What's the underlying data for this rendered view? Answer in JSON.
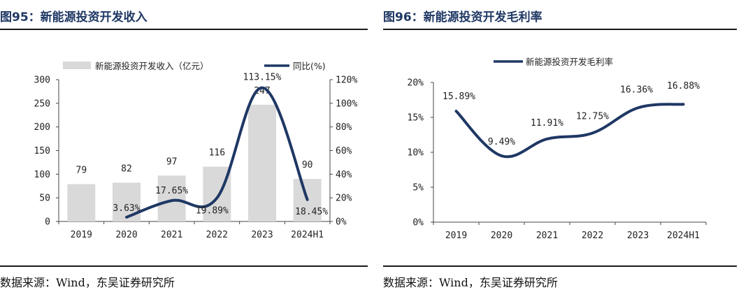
{
  "left_panel": {
    "title": "图95：新能源投资开发收入",
    "source": "数据来源：Wind，东吴证券研究所"
  },
  "right_panel": {
    "title": "图96：新能源投资开发毛利率",
    "source": "数据来源：Wind，东吴证券研究所"
  },
  "colors": {
    "bar": "#d9d9d9",
    "line": "#1f3864",
    "title": "#1f3864"
  },
  "chart_data": [
    {
      "type": "bar",
      "categories": [
        "2019",
        "2020",
        "2021",
        "2022",
        "2023",
        "2024H1"
      ],
      "series": [
        {
          "name": "新能源投资开发收入（亿元）",
          "type": "bar",
          "axis": "left",
          "values": [
            79,
            82,
            97,
            116,
            247,
            90
          ],
          "labels": [
            "79",
            "82",
            "97",
            "116",
            "247",
            "90"
          ]
        },
        {
          "name": "同比(%)",
          "type": "line",
          "axis": "right",
          "values": [
            null,
            3.63,
            17.65,
            19.89,
            113.15,
            18.45
          ],
          "labels": [
            "",
            "3.63%",
            "17.65%",
            "19.89%",
            "113.15%",
            "18.45%"
          ]
        }
      ],
      "ylim": [
        0,
        300
      ],
      "yticks": [
        "0",
        "50",
        "100",
        "150",
        "200",
        "250",
        "300"
      ],
      "y2lim": [
        0,
        120
      ],
      "y2ticks": [
        "0%",
        "20%",
        "40%",
        "60%",
        "80%",
        "100%",
        "120%"
      ],
      "legend_position": "top",
      "grid": false
    },
    {
      "type": "line",
      "categories": [
        "2019",
        "2020",
        "2021",
        "2022",
        "2023",
        "2024H1"
      ],
      "series": [
        {
          "name": "新能源投资开发毛利率",
          "values": [
            15.89,
            9.49,
            11.91,
            12.75,
            16.36,
            16.88
          ],
          "labels": [
            "15.89%",
            "9.49%",
            "11.91%",
            "12.75%",
            "16.36%",
            "16.88%"
          ]
        }
      ],
      "ylim": [
        0,
        20
      ],
      "yticks": [
        "0%",
        "5%",
        "10%",
        "15%",
        "20%"
      ],
      "legend_position": "top",
      "grid": false
    }
  ]
}
